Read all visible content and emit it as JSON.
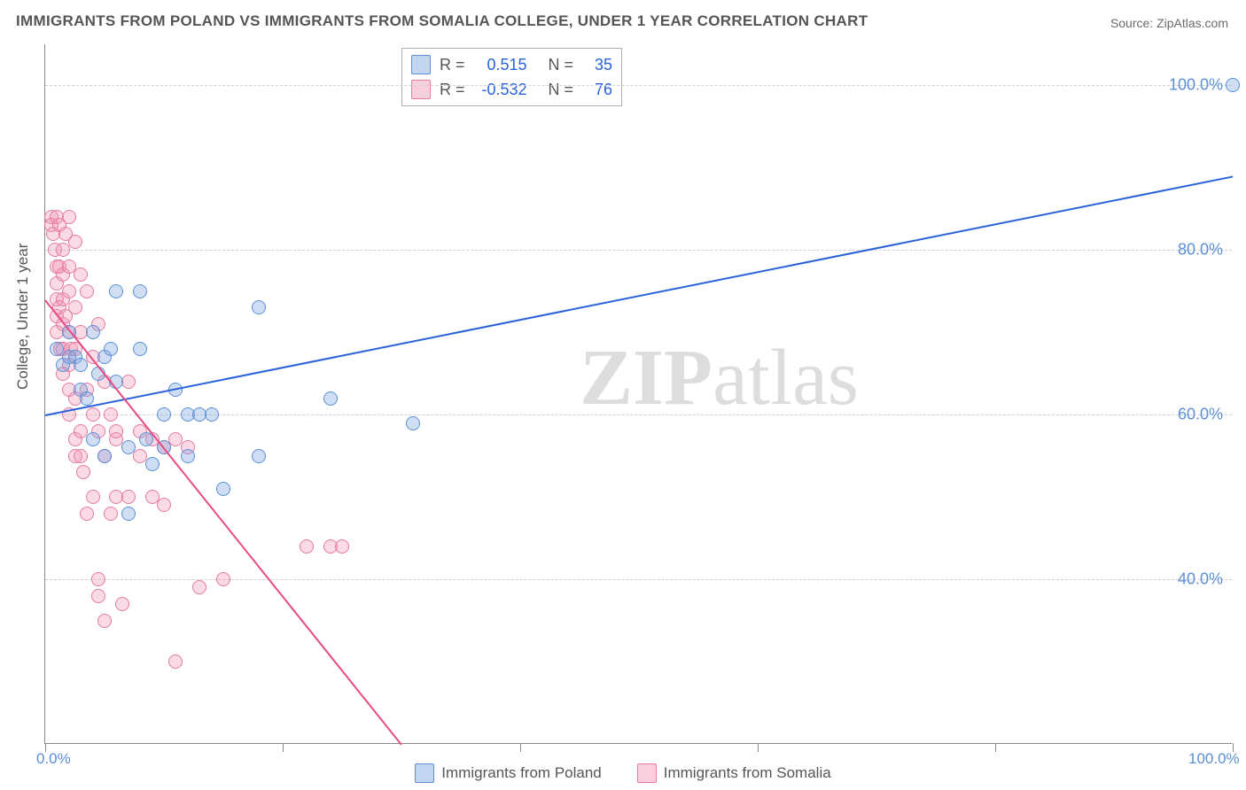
{
  "title": "IMMIGRANTS FROM POLAND VS IMMIGRANTS FROM SOMALIA COLLEGE, UNDER 1 YEAR CORRELATION CHART",
  "source": "Source: ZipAtlas.com",
  "y_axis_label": "College, Under 1 year",
  "watermark": "ZIPatlas",
  "chart": {
    "type": "scatter-correlation",
    "background_color": "#ffffff",
    "grid_color": "#cfcfcf",
    "axis_color": "#888888",
    "tick_label_color": "#5b8fd6",
    "title_color": "#555555",
    "title_fontsize": 17,
    "tick_fontsize": 18,
    "axis_label_fontsize": 17,
    "xlim": [
      0,
      100
    ],
    "ylim": [
      20,
      105
    ],
    "x_ticks": [
      0,
      100
    ],
    "x_tick_labels": [
      "0.0%",
      "100.0%"
    ],
    "x_minor_ticks": [
      0,
      20,
      40,
      60,
      80,
      100
    ],
    "y_ticks": [
      40,
      60,
      80,
      100
    ],
    "y_tick_labels": [
      "40.0%",
      "60.0%",
      "80.0%",
      "100.0%"
    ],
    "marker_size": 16,
    "marker_opacity": 0.35,
    "line_width": 2
  },
  "series": [
    {
      "name": "Immigrants from Poland",
      "color_fill": "rgba(120,160,220,0.35)",
      "color_stroke": "#5b8fd6",
      "trend_color": "#2962d9",
      "R": "0.515",
      "N": "35",
      "trend": {
        "x1": 0,
        "y1": 60,
        "x2": 100,
        "y2": 89
      },
      "points": [
        [
          1,
          68
        ],
        [
          1.5,
          66
        ],
        [
          2,
          67
        ],
        [
          2,
          70
        ],
        [
          2.5,
          67
        ],
        [
          3,
          66
        ],
        [
          3,
          63
        ],
        [
          3.5,
          62
        ],
        [
          4,
          70
        ],
        [
          4,
          57
        ],
        [
          4.5,
          65
        ],
        [
          5,
          55
        ],
        [
          5,
          67
        ],
        [
          5.5,
          68
        ],
        [
          6,
          75
        ],
        [
          6,
          64
        ],
        [
          7,
          56
        ],
        [
          7,
          48
        ],
        [
          8,
          68
        ],
        [
          8,
          75
        ],
        [
          8.5,
          57
        ],
        [
          9,
          54
        ],
        [
          10,
          56
        ],
        [
          10,
          60
        ],
        [
          11,
          63
        ],
        [
          12,
          60
        ],
        [
          12,
          55
        ],
        [
          13,
          60
        ],
        [
          14,
          60
        ],
        [
          15,
          51
        ],
        [
          18,
          73
        ],
        [
          18,
          55
        ],
        [
          24,
          62
        ],
        [
          31,
          59
        ],
        [
          100,
          100
        ]
      ]
    },
    {
      "name": "Immigrants from Somalia",
      "color_fill": "rgba(240,150,180,0.35)",
      "color_stroke": "#e57ba0",
      "trend_color": "#e94b82",
      "R": "-0.532",
      "N": "76",
      "trend": {
        "x1": 0,
        "y1": 74,
        "x2": 30,
        "y2": 20
      },
      "points": [
        [
          0.5,
          84
        ],
        [
          0.5,
          83
        ],
        [
          0.7,
          82
        ],
        [
          0.8,
          80
        ],
        [
          1,
          84
        ],
        [
          1,
          78
        ],
        [
          1,
          76
        ],
        [
          1,
          74
        ],
        [
          1,
          72
        ],
        [
          1,
          70
        ],
        [
          1.2,
          83
        ],
        [
          1.2,
          78
        ],
        [
          1.2,
          73
        ],
        [
          1.3,
          68
        ],
        [
          1.5,
          80
        ],
        [
          1.5,
          77
        ],
        [
          1.5,
          74
        ],
        [
          1.5,
          71
        ],
        [
          1.5,
          68
        ],
        [
          1.5,
          65
        ],
        [
          1.7,
          82
        ],
        [
          1.7,
          72
        ],
        [
          2,
          84
        ],
        [
          2,
          78
        ],
        [
          2,
          75
        ],
        [
          2,
          70
        ],
        [
          2,
          66
        ],
        [
          2,
          63
        ],
        [
          2,
          60
        ],
        [
          2.2,
          68
        ],
        [
          2.5,
          81
        ],
        [
          2.5,
          73
        ],
        [
          2.5,
          68
        ],
        [
          2.5,
          62
        ],
        [
          2.5,
          57
        ],
        [
          2.5,
          55
        ],
        [
          3,
          77
        ],
        [
          3,
          70
        ],
        [
          3,
          58
        ],
        [
          3,
          55
        ],
        [
          3.2,
          53
        ],
        [
          3.5,
          75
        ],
        [
          3.5,
          63
        ],
        [
          3.5,
          48
        ],
        [
          4,
          67
        ],
        [
          4,
          60
        ],
        [
          4,
          50
        ],
        [
          4.5,
          71
        ],
        [
          4.5,
          58
        ],
        [
          4.5,
          40
        ],
        [
          4.5,
          38
        ],
        [
          5,
          64
        ],
        [
          5,
          55
        ],
        [
          5,
          35
        ],
        [
          5.5,
          60
        ],
        [
          5.5,
          48
        ],
        [
          6,
          57
        ],
        [
          6,
          50
        ],
        [
          6,
          58
        ],
        [
          6.5,
          37
        ],
        [
          7,
          64
        ],
        [
          7,
          50
        ],
        [
          8,
          55
        ],
        [
          8,
          58
        ],
        [
          9,
          50
        ],
        [
          9,
          57
        ],
        [
          10,
          49
        ],
        [
          10,
          56
        ],
        [
          11,
          57
        ],
        [
          11,
          30
        ],
        [
          12,
          56
        ],
        [
          13,
          39
        ],
        [
          15,
          40
        ],
        [
          22,
          44
        ],
        [
          24,
          44
        ],
        [
          25,
          44
        ]
      ]
    }
  ],
  "legend": {
    "correlation_labels": {
      "R": "R =",
      "N": "N ="
    },
    "bottom_items": [
      "Immigrants from Poland",
      "Immigrants from Somalia"
    ]
  }
}
